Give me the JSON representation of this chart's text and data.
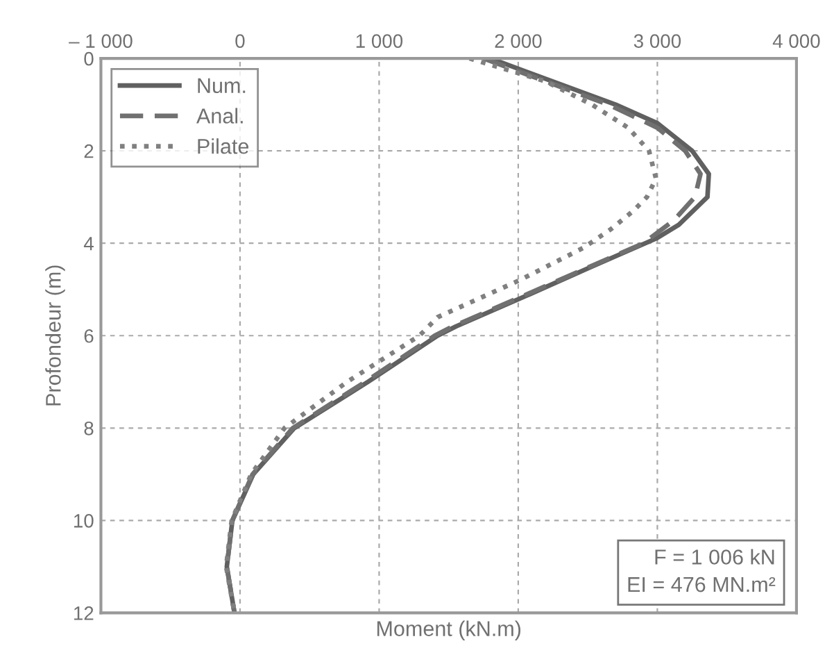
{
  "chart_data": {
    "type": "line",
    "xlabel": "Moment (kN.m)",
    "ylabel": "Profondeur (m)",
    "xlim": [
      -1000,
      4000
    ],
    "ylim": [
      12,
      0
    ],
    "xticks": [
      {
        "value": -1000,
        "label": "– 1 000"
      },
      0,
      {
        "value": 1000,
        "label": "1 000"
      },
      {
        "value": 2000,
        "label": "2 000"
      },
      {
        "value": 3000,
        "label": "3 000"
      },
      {
        "value": 4000,
        "label": "4 000"
      }
    ],
    "yticks": [
      0,
      2,
      4,
      6,
      8,
      10,
      12
    ],
    "grid": true,
    "legend": "top left",
    "marker": "none",
    "annotations": [
      "F = 1 006 kN\nEI = 476 MN.m²"
    ],
    "series": [
      {
        "name": "Num.",
        "color": "#606060",
        "line_style": "solid",
        "x": [
          1800,
          2700,
          3000,
          3250,
          3370,
          3360,
          3154,
          2990,
          2533,
          2010,
          1552,
          1420,
          920,
          390,
          95,
          -55,
          -95,
          -40
        ],
        "values": [
          0,
          1,
          1.4,
          2,
          2.5,
          3,
          3.6,
          3.9,
          4.5,
          5.2,
          5.8,
          6,
          7,
          8,
          9,
          10,
          11,
          12
        ]
      },
      {
        "name": "Anal.",
        "color": "#707070",
        "line_style": "dashed",
        "x": [
          1750,
          2650,
          3000,
          3200,
          3310,
          3270,
          3120,
          2900,
          2520,
          1990,
          1530,
          1400,
          900,
          380,
          90,
          -55,
          -95,
          -40
        ],
        "values": [
          0,
          1,
          1.5,
          2,
          2.5,
          3,
          3.5,
          4,
          4.5,
          5.2,
          5.8,
          6,
          7,
          8,
          9,
          10,
          11,
          12
        ]
      },
      {
        "name": "Pilate",
        "color": "#808080",
        "line_style": "dotted",
        "x": [
          1650,
          2200,
          2530,
          2790,
          2940,
          2990,
          2925,
          2827,
          2664,
          2468,
          2206,
          2010,
          1715,
          1421,
          1290,
          770,
          320,
          80,
          -60,
          -100,
          -40
        ],
        "values": [
          0,
          0.5,
          1,
          1.5,
          2,
          2.6,
          3,
          3.3,
          3.7,
          4.1,
          4.5,
          4.8,
          5.2,
          5.6,
          6,
          7,
          8,
          9,
          10,
          11,
          12
        ]
      }
    ]
  }
}
